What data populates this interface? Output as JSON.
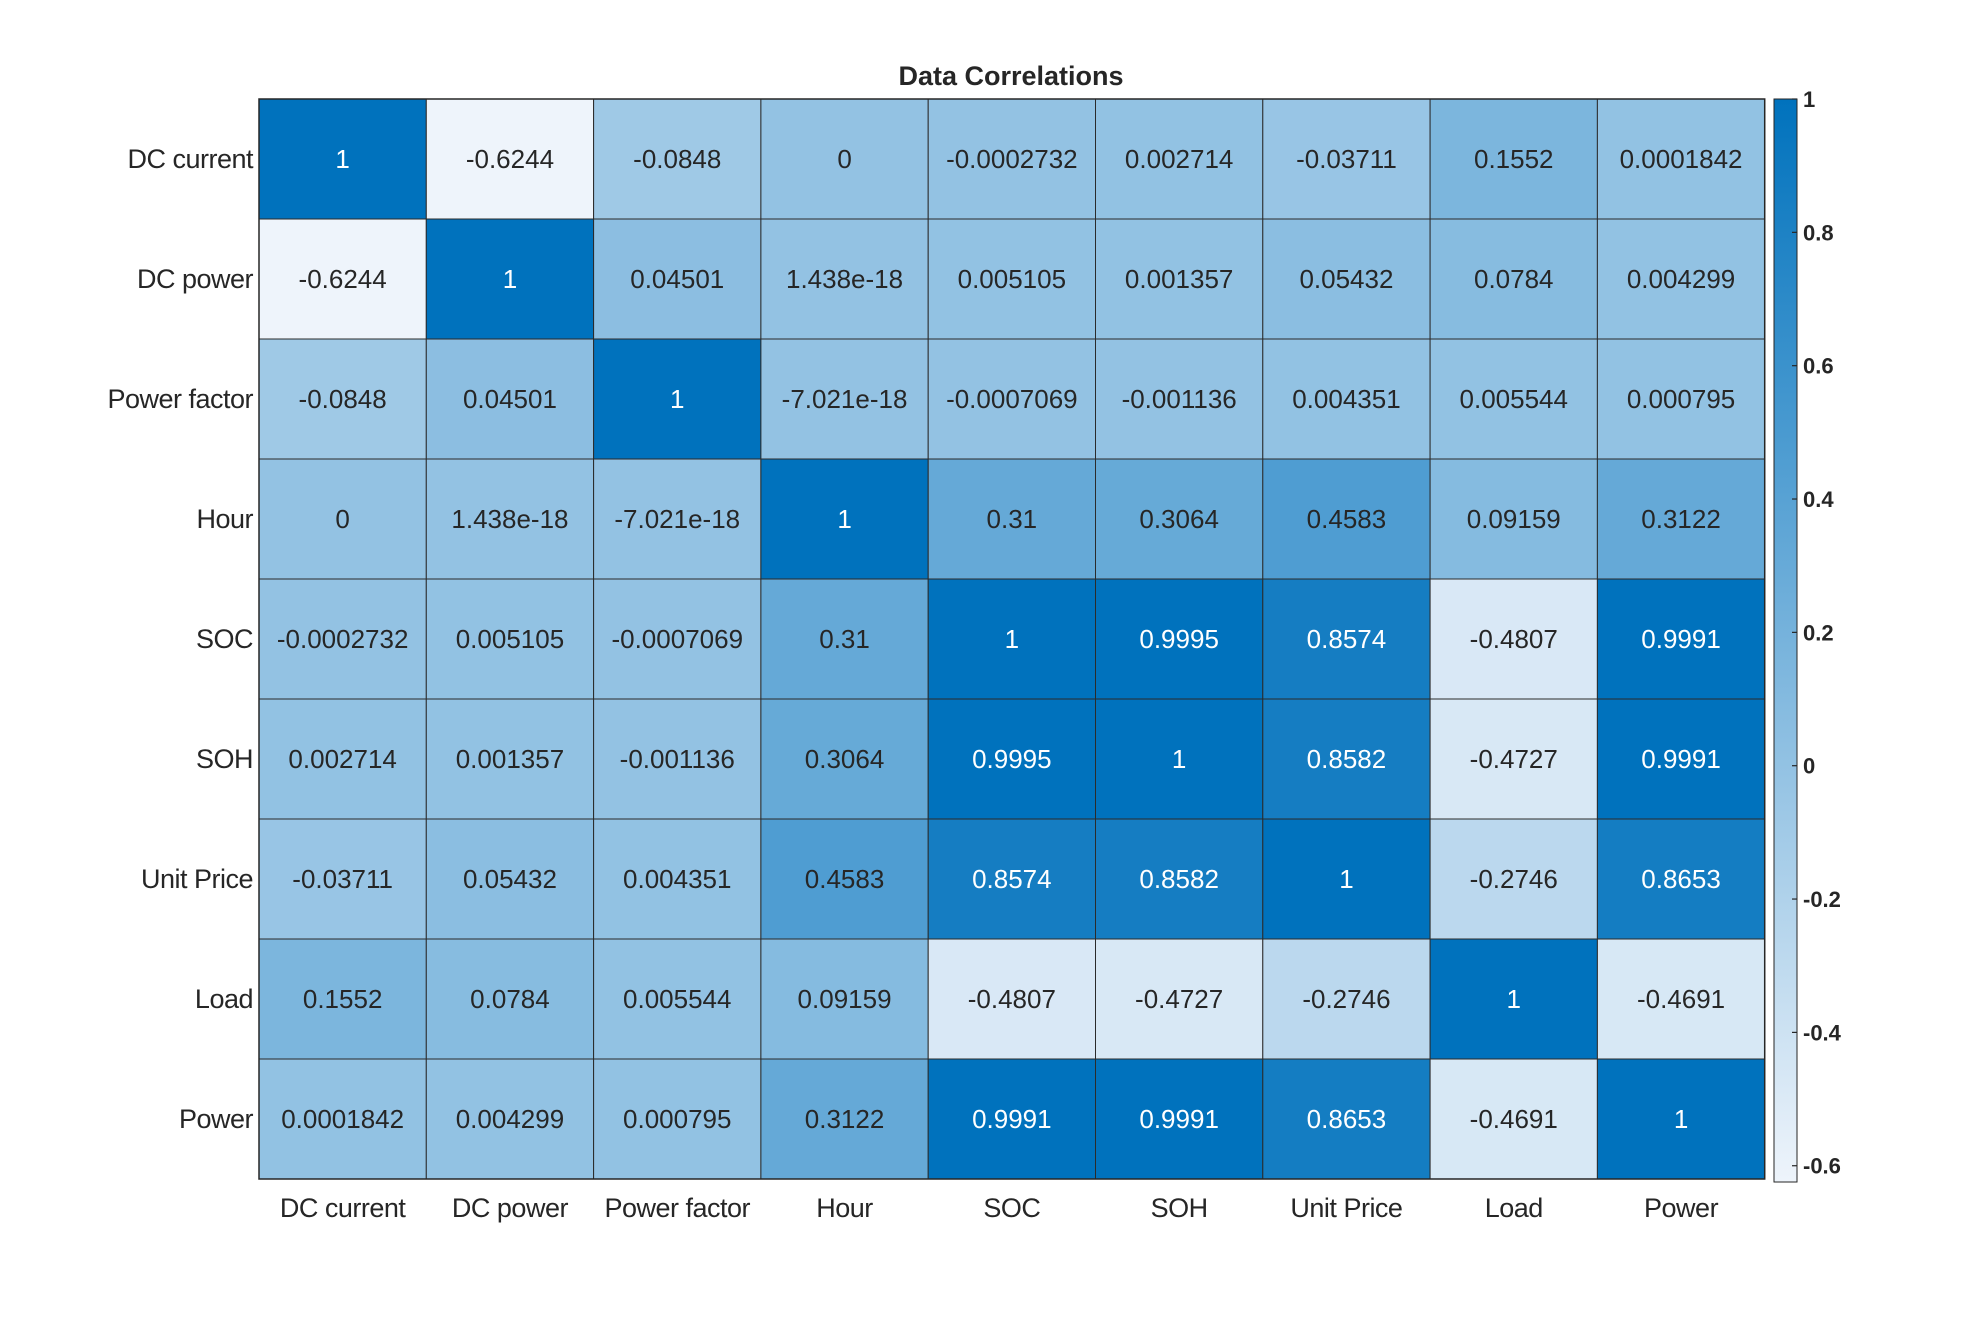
{
  "chart_data": {
    "type": "heatmap",
    "title": "Data Correlations",
    "x_labels": [
      "DC current",
      "DC power",
      "Power factor",
      "Hour",
      "SOC",
      "SOH",
      "Unit Price",
      "Load",
      "Power"
    ],
    "y_labels": [
      "DC current",
      "DC power",
      "Power factor",
      "Hour",
      "SOC",
      "SOH",
      "Unit Price",
      "Load",
      "Power"
    ],
    "cell_labels": [
      [
        "1",
        "-0.6244",
        "-0.0848",
        "0",
        "-0.0002732",
        "0.002714",
        "-0.03711",
        "0.1552",
        "0.0001842"
      ],
      [
        "-0.6244",
        "1",
        "0.04501",
        "1.438e-18",
        "0.005105",
        "0.001357",
        "0.05432",
        "0.0784",
        "0.004299"
      ],
      [
        "-0.0848",
        "0.04501",
        "1",
        "-7.021e-18",
        "-0.0007069",
        "-0.001136",
        "0.004351",
        "0.005544",
        "0.000795"
      ],
      [
        "0",
        "1.438e-18",
        "-7.021e-18",
        "1",
        "0.31",
        "0.3064",
        "0.4583",
        "0.09159",
        "0.3122"
      ],
      [
        "-0.0002732",
        "0.005105",
        "-0.0007069",
        "0.31",
        "1",
        "0.9995",
        "0.8574",
        "-0.4807",
        "0.9991"
      ],
      [
        "0.002714",
        "0.001357",
        "-0.001136",
        "0.3064",
        "0.9995",
        "1",
        "0.8582",
        "-0.4727",
        "0.9991"
      ],
      [
        "-0.03711",
        "0.05432",
        "0.004351",
        "0.4583",
        "0.8574",
        "0.8582",
        "1",
        "-0.2746",
        "0.8653"
      ],
      [
        "0.1552",
        "0.0784",
        "0.005544",
        "0.09159",
        "-0.4807",
        "-0.4727",
        "-0.2746",
        "1",
        "-0.4691"
      ],
      [
        "0.0001842",
        "0.004299",
        "0.000795",
        "0.3122",
        "0.9991",
        "0.9991",
        "0.8653",
        "-0.4691",
        "1"
      ]
    ],
    "colorbar": {
      "range": [
        -0.6244,
        1
      ],
      "ticks": [
        -0.6,
        -0.4,
        -0.2,
        0,
        0.2,
        0.4,
        0.6,
        0.8,
        1
      ],
      "tick_labels": [
        "-0.6",
        "-0.4",
        "-0.2",
        "0",
        "0.2",
        "0.4",
        "0.6",
        "0.8",
        "1"
      ],
      "color_low": "#eef4fb",
      "color_high": "#0072bd"
    },
    "grid": true,
    "legend": "colorbar-right",
    "text_color_dark": "#262626",
    "text_color_light": "#ffffff"
  }
}
